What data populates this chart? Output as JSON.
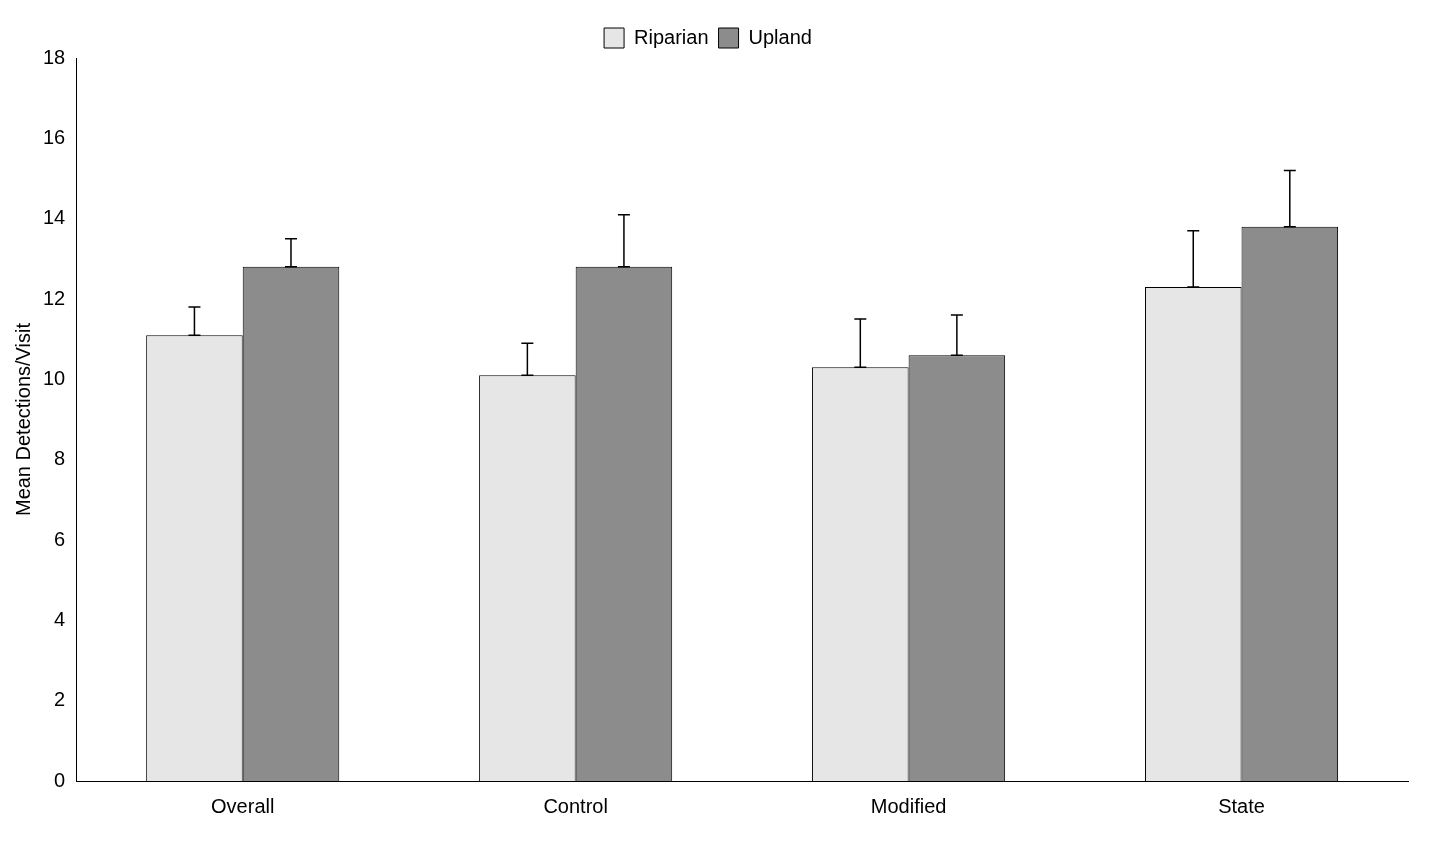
{
  "chart_data": {
    "type": "bar",
    "ylabel": "Mean Detections/Visit",
    "categories": [
      "Overall",
      "Control",
      "Modified",
      "State"
    ],
    "series": [
      {
        "name": "Riparian",
        "color": "#e6e6e6",
        "values": [
          11.1,
          10.1,
          10.3,
          12.3
        ],
        "errors": [
          [
            11.1,
            11.8
          ],
          [
            10.1,
            10.9
          ],
          [
            10.3,
            11.5
          ],
          [
            12.3,
            13.7
          ]
        ]
      },
      {
        "name": "Upland",
        "color": "#8c8c8c",
        "values": [
          12.8,
          12.8,
          10.6,
          13.8
        ],
        "errors": [
          [
            12.8,
            13.5
          ],
          [
            12.8,
            14.1
          ],
          [
            10.6,
            11.6
          ],
          [
            13.8,
            15.2
          ]
        ]
      }
    ],
    "ylim": [
      0,
      18
    ],
    "yticks": [
      0,
      2,
      4,
      6,
      8,
      10,
      12,
      14,
      16,
      18
    ],
    "grid": false,
    "legend": "top"
  }
}
